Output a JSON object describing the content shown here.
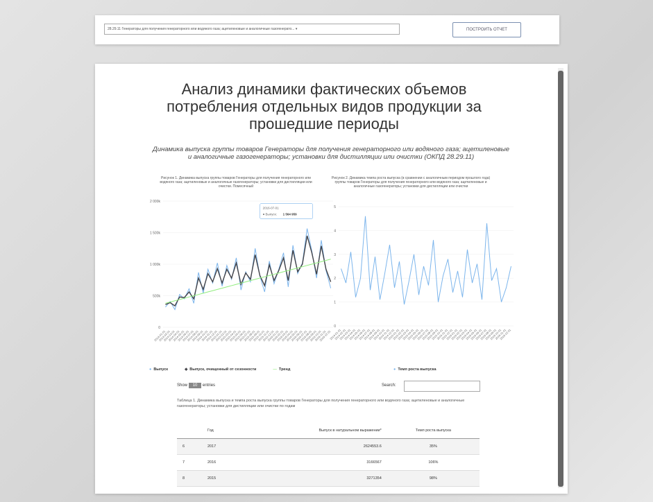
{
  "header": {
    "select": "28.29.11 Генераторы для получения генераторного или водяного газа; ацетиленовые и аналогичные газогенерато...",
    "button": "ПОСТРОИТЬ ОТЧЕТ"
  },
  "title": "Анализ динамики фактических объемов потребления отдельных видов продукции за прошедшие периоды",
  "subtitle": "Динамика выпуска группы товаров Генераторы для получения генераторного или водяного газа; ацетиленовые и аналогичные газогенераторы; установки для дистилляции или очистки (ОКПД 28.29.11)",
  "chart_data": [
    {
      "type": "line",
      "title": "Рисунок 1. Динамика выпуска группы товаров Генераторы для получения генераторного или водяного газа; ацетиленовые и аналогичные газогенераторы; установки для дистилляции или очистки. Помесячный",
      "categories": [
        "2014-01-01",
        "2014-02-01",
        "2014-03-01",
        "2014-04-01",
        "2014-05-01",
        "2014-06-01",
        "2014-07-01",
        "2014-08-01",
        "2014-09-01",
        "2014-10-01",
        "2014-11-01",
        "2014-12-01",
        "2015-01-01",
        "2015-02-01",
        "2015-03-01",
        "2015-04-01",
        "2015-05-01",
        "2015-06-01",
        "2015-07-01",
        "2015-08-01",
        "2015-09-01",
        "2015-10-01",
        "2015-11-01",
        "2015-12-01",
        "2016-01-01",
        "2016-02-01",
        "2016-03-01",
        "2016-04-01",
        "2016-05-01",
        "2016-06-01",
        "2016-07-01",
        "2016-08-01",
        "2016-09-01",
        "2016-10-01",
        "2016-11-01",
        "2016-12-01"
      ],
      "series": [
        {
          "name": "Выпуск",
          "color": "#7cb5ec",
          "values": [
            320000,
            410000,
            280000,
            520000,
            450000,
            610000,
            380000,
            870000,
            540000,
            920000,
            700000,
            1020000,
            650000,
            980000,
            760000,
            1100000,
            590000,
            880000,
            720000,
            1250000,
            810000,
            560000,
            1050000,
            690000,
            920000,
            1180000,
            640000,
            1300000,
            850000,
            1020000,
            1564959,
            1210000,
            780000,
            1380000,
            900000,
            620000
          ]
        },
        {
          "name": "Выпуск, очищенный от сезонности",
          "color": "#434348",
          "values": [
            360000,
            390000,
            340000,
            480000,
            470000,
            560000,
            450000,
            780000,
            600000,
            850000,
            720000,
            930000,
            700000,
            920000,
            780000,
            1020000,
            680000,
            860000,
            760000,
            1150000,
            820000,
            660000,
            990000,
            740000,
            900000,
            1100000,
            740000,
            1220000,
            880000,
            1000000,
            1450000,
            1180000,
            840000,
            1290000,
            920000,
            720000
          ]
        },
        {
          "name": "Тренд",
          "color": "#90ed7d",
          "values": [
            380000,
            400000,
            420000,
            440000,
            460000,
            480000,
            500000,
            520000,
            540000,
            560000,
            580000,
            600000,
            620000,
            640000,
            660000,
            680000,
            700000,
            720000,
            740000,
            760000,
            780000,
            800000,
            820000,
            840000,
            860000,
            880000,
            900000,
            920000,
            940000,
            960000,
            980000,
            1000000,
            1020000,
            1040000,
            1060000,
            1080000
          ]
        }
      ],
      "ylim": [
        0,
        2000000
      ],
      "yticks": [
        0,
        {
          "value": 500000,
          "label": "500k"
        },
        {
          "value": 1000000,
          "label": "1 000k"
        },
        {
          "value": 1500000,
          "label": "1 500k"
        },
        {
          "value": 2000000,
          "label": "2 000k"
        }
      ],
      "tooltip": {
        "date": "2016-07-01",
        "text": "● Выпуск:",
        "value": "1 564 959"
      }
    },
    {
      "type": "line",
      "title": "Рисунок 2. Динамика темпа роста выпуска (в сравнении с аналогичным периодом прошлого года) группы товаров Генераторы для получения генераторного или водяного газа; ацетиленовые и аналогичные газогенераторы; установки для дистилляции или очистки",
      "categories": [
        "2014-01-01",
        "2014-02-01",
        "2014-03-01",
        "2014-04-01",
        "2014-05-01",
        "2014-06-01",
        "2014-07-01",
        "2014-08-01",
        "2014-09-01",
        "2014-10-01",
        "2014-11-01",
        "2014-12-01",
        "2015-01-01",
        "2015-02-01",
        "2015-03-01",
        "2015-04-01",
        "2015-05-01",
        "2015-06-01",
        "2015-07-01",
        "2015-08-01",
        "2015-09-01",
        "2015-10-01",
        "2015-11-01",
        "2015-12-01",
        "2016-01-01",
        "2016-02-01",
        "2016-03-01",
        "2016-04-01",
        "2016-05-01",
        "2016-06-01",
        "2016-07-01",
        "2016-08-01",
        "2016-09-01",
        "2016-10-01",
        "2016-11-01",
        "2016-12-01"
      ],
      "series": [
        {
          "name": "Темп роста выпуска",
          "color": "#7cb5ec",
          "values": [
            2.4,
            1.8,
            3.1,
            1.2,
            2.0,
            4.6,
            1.5,
            2.9,
            1.1,
            2.2,
            3.4,
            1.6,
            2.7,
            0.9,
            1.9,
            3.0,
            1.3,
            2.5,
            1.7,
            3.6,
            1.0,
            2.1,
            2.8,
            1.4,
            2.3,
            1.2,
            3.2,
            1.8,
            2.6,
            1.1,
            4.3,
            1.9,
            2.4,
            1.0,
            1.6,
            2.5
          ]
        }
      ],
      "ylim": [
        0,
        5
      ],
      "yticks": [
        0,
        1,
        2,
        3,
        4,
        5
      ]
    }
  ],
  "table": {
    "show": "Show",
    "length": "10",
    "entries": "entries",
    "search": "Search:",
    "caption": "Таблица 1. Динамика выпуска и темпа роста выпуска группы товаров Генераторы для получения генераторного или водяного газа; ацетиленовые и аналогичные газогенераторы; установки для дистилляции или очистки по годам",
    "columns": [
      "Год",
      "Выпуск в натуральном выражении*",
      "Темп роста выпуска"
    ],
    "rows": [
      [
        "6",
        "2017",
        "2624553.6",
        "35%"
      ],
      [
        "7",
        "2016",
        "3166567",
        "106%"
      ],
      [
        "8",
        "2015",
        "3271354",
        "98%"
      ]
    ]
  }
}
